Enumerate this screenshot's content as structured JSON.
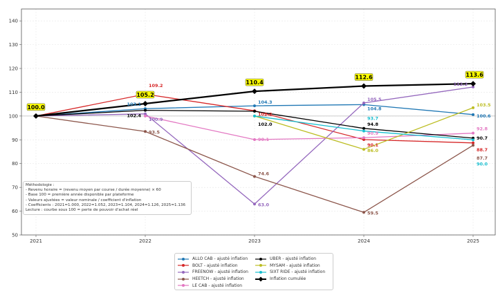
{
  "chart_data": {
    "type": "line",
    "title": "",
    "xlabel": "",
    "ylabel": "",
    "x": [
      "2021",
      "2022",
      "2023",
      "2024",
      "2025"
    ],
    "ylim": [
      50,
      145
    ],
    "yticks": [
      50,
      60,
      70,
      80,
      90,
      100,
      110,
      120,
      130,
      140
    ],
    "grid": true,
    "reference_line": 100,
    "series": [
      {
        "name": "ALLO CAB - ajusté inflation",
        "color": "#1f77b4",
        "values": [
          100,
          103.1,
          104.3,
          104.8,
          100.6
        ],
        "labels": [
          null,
          "103.1",
          "104.3",
          "104.8",
          "100.6"
        ]
      },
      {
        "name": "BOLT - ajusté inflation",
        "color": "#d62728",
        "values": [
          100,
          109.2,
          102.2,
          90.1,
          88.7
        ],
        "labels": [
          null,
          "109.2",
          "102.2",
          "90.1",
          "88.7"
        ]
      },
      {
        "name": "FREENOW - ajusté inflation",
        "color": "#9467bd",
        "values": [
          100,
          100.9,
          63.0,
          105.5,
          112.2
        ],
        "labels": [
          null,
          "100.9",
          "63.0",
          "105.5",
          "112.2"
        ]
      },
      {
        "name": "HEETCH - ajusté inflation",
        "color": "#8c564b",
        "values": [
          100,
          93.5,
          74.6,
          59.5,
          87.7
        ],
        "labels": [
          null,
          "93.5",
          "74.6",
          "59.5",
          "87.7"
        ]
      },
      {
        "name": "LE CAB - ajusté inflation",
        "color": "#e377c2",
        "values": [
          null,
          100,
          90.1,
          90.9,
          92.8
        ],
        "labels": [
          null,
          null,
          "90.1",
          "90.9",
          "92.8"
        ]
      },
      {
        "name": "UBER - ajusté inflation",
        "color": "#000000",
        "values": [
          100,
          102.4,
          102.0,
          94.8,
          90.7
        ],
        "labels": [
          null,
          "102.4",
          "102.0",
          "94.8",
          "90.7"
        ]
      },
      {
        "name": "MYSAM - ajusté inflation",
        "color": "#bcbd22",
        "values": [
          null,
          null,
          100,
          86.0,
          103.5
        ],
        "labels": [
          null,
          null,
          null,
          "86.0",
          "103.5"
        ]
      },
      {
        "name": "SIXT RIDE - ajusté inflation",
        "color": "#17becf",
        "values": [
          null,
          null,
          100,
          93.7,
          90.0
        ],
        "labels": [
          null,
          null,
          null,
          "93.7",
          "90.0"
        ]
      }
    ],
    "inflation": {
      "name": "Inflation cumulée",
      "color": "#000000",
      "values": [
        100.0,
        105.2,
        110.4,
        112.6,
        113.6
      ],
      "labels": [
        "100.0",
        "105.2",
        "110.4",
        "112.6",
        "113.6"
      ]
    },
    "legend_position": "bottom-center"
  },
  "note": {
    "lines": [
      "Méthodologie :",
      "- Revenu horaire = (revenu moyen par course / durée moyenne) × 60",
      "- Base 100 = première année disponible par plateforme",
      "- Valeurs ajustées = valeur nominale / coefficient d'inflation",
      "- Coefficients : 2021=1.000, 2022=1.052, 2023=1.104, 2024=1.126, 2025=1.136",
      "Lecture : courbe sous 100 = perte de pouvoir d'achat réel"
    ]
  }
}
